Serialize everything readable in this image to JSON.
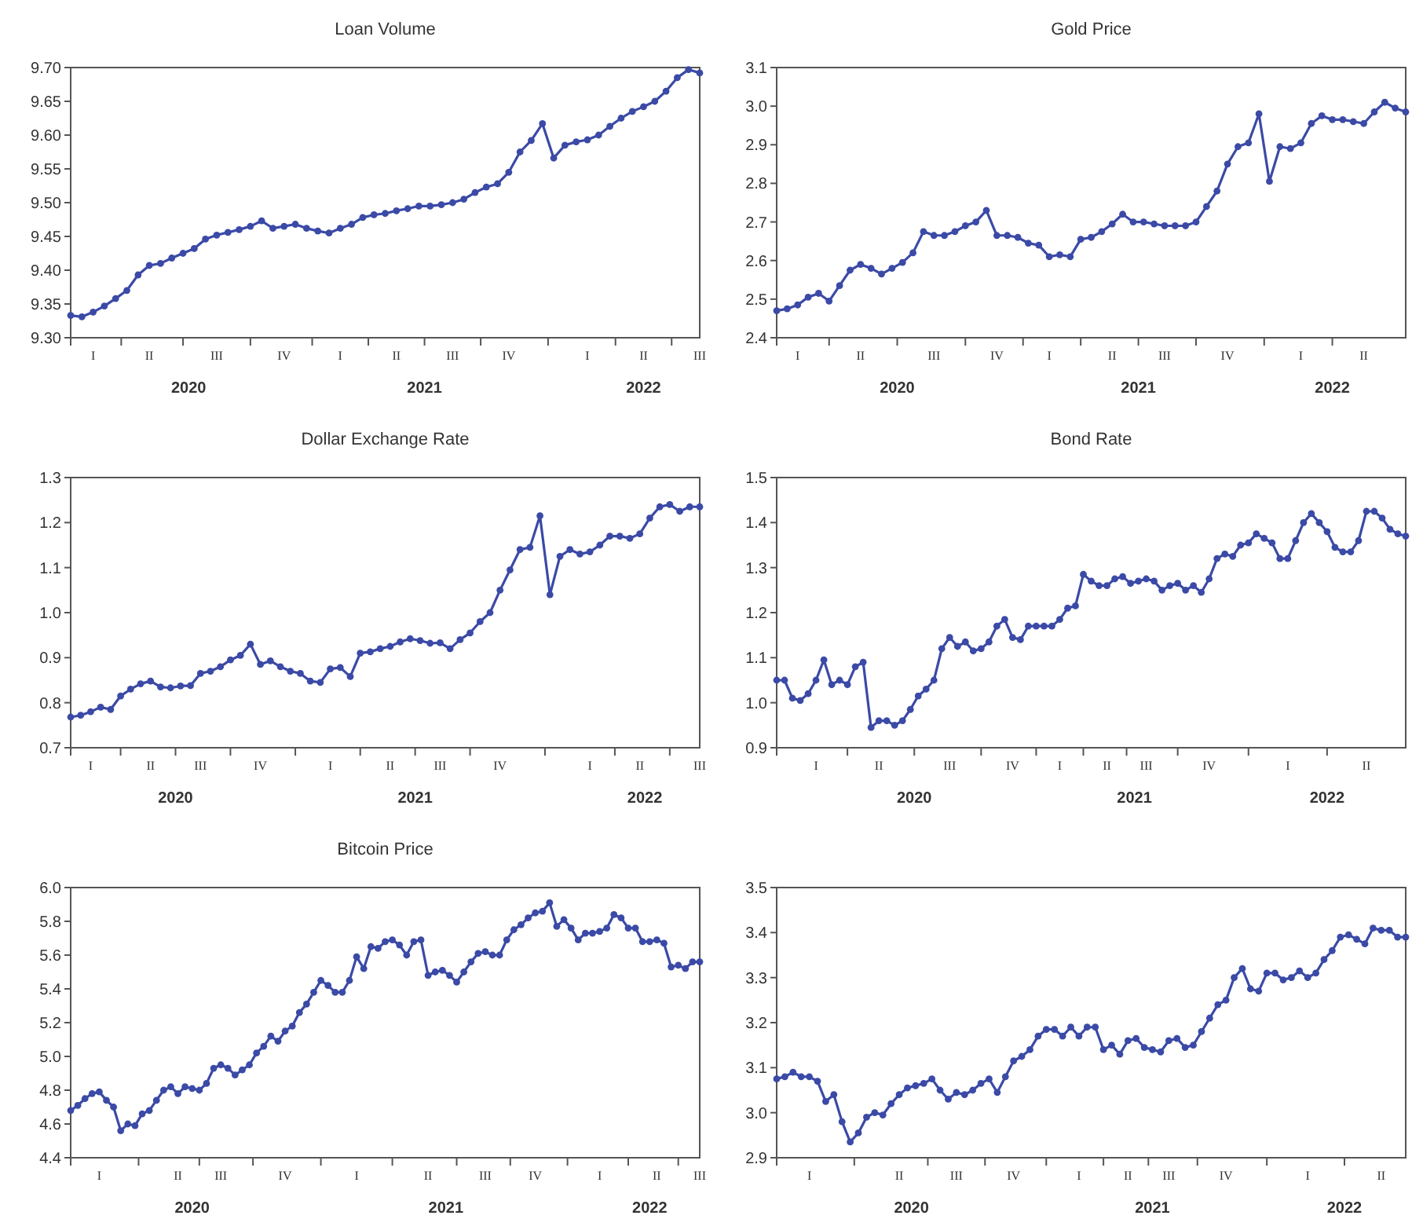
{
  "chart_data": [
    {
      "type": "line",
      "title": "Loan Volume",
      "marker": "circle",
      "line_style": "solid",
      "grid": false,
      "ylim": [
        9.3,
        9.7
      ],
      "yticks": [
        {
          "value": 9.3,
          "label": "9.30"
        },
        9.35,
        {
          "value": 9.4,
          "label": "9.40"
        },
        9.45,
        {
          "value": 9.5,
          "label": "9.50"
        },
        9.55,
        {
          "value": 9.6,
          "label": "9.60"
        },
        9.65,
        {
          "value": 9.7,
          "label": "9.70"
        }
      ],
      "categories": [
        null,
        null,
        "I",
        null,
        null,
        null,
        null,
        "II",
        null,
        null,
        null,
        null,
        null,
        "III",
        null,
        null,
        null,
        null,
        null,
        "IV",
        null,
        null,
        null,
        null,
        "I",
        null,
        null,
        null,
        null,
        "II",
        null,
        null,
        null,
        null,
        "III",
        null,
        null,
        null,
        null,
        "IV",
        null,
        null,
        null,
        null,
        null,
        null,
        "I",
        null,
        null,
        null,
        null,
        "II",
        null,
        null,
        null,
        null,
        "III"
      ],
      "annotations": [
        "2020",
        "2021",
        "2022"
      ],
      "series": [
        {
          "color": "#3b4aa6",
          "values": [
            9.333,
            9.331,
            9.338,
            9.347,
            9.358,
            9.37,
            9.393,
            9.407,
            9.41,
            9.418,
            9.425,
            9.432,
            9.446,
            9.452,
            9.456,
            9.46,
            9.465,
            9.473,
            9.462,
            9.465,
            9.468,
            9.462,
            9.458,
            9.455,
            9.462,
            9.468,
            9.478,
            9.482,
            9.484,
            9.488,
            9.491,
            9.495,
            9.495,
            9.497,
            9.5,
            9.505,
            9.515,
            9.523,
            9.528,
            9.545,
            9.575,
            9.592,
            9.617,
            9.566,
            9.585,
            9.59,
            9.593,
            9.6,
            9.613,
            9.625,
            9.635,
            9.642,
            9.65,
            9.665,
            9.685,
            9.697,
            9.692
          ]
        }
      ]
    },
    {
      "type": "line",
      "title": "Gold Price",
      "marker": "circle",
      "line_style": "solid",
      "grid": false,
      "ylim": [
        2.4,
        3.1
      ],
      "yticks": [
        2.4,
        2.5,
        2.6,
        2.7,
        2.8,
        2.9,
        {
          "value": 3,
          "label": "3.0"
        },
        3.1
      ],
      "categories": [
        null,
        null,
        "I",
        null,
        null,
        null,
        null,
        null,
        "II",
        null,
        null,
        null,
        null,
        null,
        null,
        "III",
        null,
        null,
        null,
        null,
        null,
        "IV",
        null,
        null,
        null,
        null,
        "I",
        null,
        null,
        null,
        null,
        null,
        "II",
        null,
        null,
        null,
        null,
        "III",
        null,
        null,
        null,
        null,
        null,
        "IV",
        null,
        null,
        null,
        null,
        null,
        null,
        "I",
        null,
        null,
        null,
        null,
        null,
        "II",
        null,
        null,
        null,
        null
      ],
      "annotations": [
        "2020",
        "2021",
        "2022"
      ],
      "series": [
        {
          "color": "#3b4aa6",
          "values": [
            2.47,
            2.475,
            2.485,
            2.505,
            2.515,
            2.495,
            2.535,
            2.575,
            2.59,
            2.58,
            2.565,
            2.58,
            2.595,
            2.62,
            2.675,
            2.665,
            2.665,
            2.675,
            2.69,
            2.7,
            2.73,
            2.665,
            2.665,
            2.66,
            2.645,
            2.64,
            2.61,
            2.615,
            2.61,
            2.655,
            2.66,
            2.675,
            2.695,
            2.72,
            2.7,
            2.7,
            2.695,
            2.69,
            2.69,
            2.69,
            2.7,
            2.74,
            2.78,
            2.85,
            2.895,
            2.905,
            2.98,
            2.805,
            2.895,
            2.89,
            2.905,
            2.955,
            2.975,
            2.965,
            2.965,
            2.96,
            2.955,
            2.985,
            3.01,
            2.995,
            2.985
          ]
        }
      ]
    },
    {
      "type": "line",
      "title": "Dollar Exchange Rate",
      "marker": "circle",
      "line_style": "solid",
      "grid": false,
      "ylim": [
        0.7,
        1.3
      ],
      "yticks": [
        0.7,
        0.8,
        0.9,
        {
          "value": 1,
          "label": "1.0"
        },
        1.1,
        1.2,
        1.3
      ],
      "categories": [
        null,
        null,
        "I",
        null,
        null,
        null,
        null,
        null,
        "II",
        null,
        null,
        null,
        null,
        "III",
        null,
        null,
        null,
        null,
        null,
        "IV",
        null,
        null,
        null,
        null,
        null,
        null,
        "I",
        null,
        null,
        null,
        null,
        null,
        "II",
        null,
        null,
        null,
        null,
        "III",
        null,
        null,
        null,
        null,
        null,
        "IV",
        null,
        null,
        null,
        null,
        null,
        null,
        null,
        null,
        "I",
        null,
        null,
        null,
        null,
        "II",
        null,
        null,
        null,
        null,
        null,
        "III"
      ],
      "annotations": [
        "2020",
        "2021",
        "2022"
      ],
      "series": [
        {
          "color": "#3b4aa6",
          "values": [
            0.768,
            0.772,
            0.78,
            0.79,
            0.785,
            0.815,
            0.83,
            0.842,
            0.848,
            0.835,
            0.833,
            0.837,
            0.838,
            0.865,
            0.87,
            0.88,
            0.895,
            0.905,
            0.93,
            0.885,
            0.893,
            0.88,
            0.87,
            0.865,
            0.848,
            0.845,
            0.875,
            0.878,
            0.858,
            0.91,
            0.913,
            0.92,
            0.925,
            0.935,
            0.942,
            0.938,
            0.932,
            0.933,
            0.92,
            0.94,
            0.955,
            0.98,
            1.0,
            1.05,
            1.095,
            1.14,
            1.145,
            1.215,
            1.04,
            1.125,
            1.14,
            1.13,
            1.135,
            1.15,
            1.17,
            1.17,
            1.165,
            1.175,
            1.21,
            1.235,
            1.24,
            1.225,
            1.235,
            1.235
          ]
        }
      ]
    },
    {
      "type": "line",
      "title": "Bond Rate",
      "marker": "circle",
      "line_style": "solid",
      "grid": false,
      "ylim": [
        0.9,
        1.5
      ],
      "yticks": [
        0.9,
        {
          "value": 1,
          "label": "1.0"
        },
        1.1,
        1.2,
        1.3,
        1.4,
        1.5
      ],
      "categories": [
        null,
        null,
        null,
        null,
        null,
        "I",
        null,
        null,
        null,
        null,
        null,
        null,
        null,
        "II",
        null,
        null,
        null,
        null,
        null,
        null,
        null,
        null,
        "III",
        null,
        null,
        null,
        null,
        null,
        null,
        null,
        "IV",
        null,
        null,
        null,
        null,
        null,
        "I",
        null,
        null,
        null,
        null,
        null,
        "II",
        null,
        null,
        null,
        null,
        "III",
        null,
        null,
        null,
        null,
        null,
        null,
        null,
        "IV",
        null,
        null,
        null,
        null,
        null,
        null,
        null,
        null,
        null,
        "I",
        null,
        null,
        null,
        null,
        null,
        null,
        null,
        null,
        null,
        "II",
        null,
        null,
        null,
        null,
        null
      ],
      "annotations": [
        "2020",
        "2021",
        "2022"
      ],
      "series": [
        {
          "color": "#3b4aa6",
          "values": [
            1.05,
            1.05,
            1.01,
            1.005,
            1.02,
            1.05,
            1.095,
            1.04,
            1.05,
            1.04,
            1.08,
            1.09,
            0.945,
            0.96,
            0.96,
            0.95,
            0.96,
            0.985,
            1.015,
            1.03,
            1.05,
            1.12,
            1.145,
            1.125,
            1.135,
            1.115,
            1.12,
            1.135,
            1.17,
            1.185,
            1.145,
            1.14,
            1.17,
            1.17,
            1.17,
            1.17,
            1.185,
            1.21,
            1.215,
            1.285,
            1.27,
            1.26,
            1.26,
            1.275,
            1.28,
            1.265,
            1.27,
            1.275,
            1.27,
            1.25,
            1.26,
            1.265,
            1.25,
            1.26,
            1.245,
            1.275,
            1.32,
            1.33,
            1.325,
            1.35,
            1.355,
            1.375,
            1.365,
            1.355,
            1.32,
            1.32,
            1.36,
            1.4,
            1.42,
            1.4,
            1.38,
            1.345,
            1.335,
            1.335,
            1.36,
            1.425,
            1.425,
            1.41,
            1.385,
            1.375,
            1.37
          ]
        }
      ]
    },
    {
      "type": "line",
      "title": "Bitcoin Price",
      "marker": "circle",
      "line_style": "solid",
      "grid": false,
      "ylim": [
        4.4,
        6.0
      ],
      "yticks": [
        4.4,
        4.6,
        4.8,
        {
          "value": 5,
          "label": "5.0"
        },
        5.2,
        5.4,
        5.6,
        5.8,
        {
          "value": 6,
          "label": "6.0"
        }
      ],
      "categories": [
        null,
        null,
        null,
        null,
        "I",
        null,
        null,
        null,
        null,
        null,
        null,
        null,
        null,
        null,
        null,
        "II",
        null,
        null,
        null,
        null,
        null,
        "III",
        null,
        null,
        null,
        null,
        null,
        null,
        null,
        null,
        "IV",
        null,
        null,
        null,
        null,
        null,
        null,
        null,
        null,
        null,
        "I",
        null,
        null,
        null,
        null,
        null,
        null,
        null,
        null,
        null,
        "II",
        null,
        null,
        null,
        null,
        null,
        null,
        null,
        "III",
        null,
        null,
        null,
        null,
        null,
        null,
        "IV",
        null,
        null,
        null,
        null,
        null,
        null,
        null,
        null,
        "I",
        null,
        null,
        null,
        null,
        null,
        null,
        null,
        "II",
        null,
        null,
        null,
        null,
        null,
        "III"
      ],
      "annotations": [
        "2020",
        "2021",
        "2022"
      ],
      "series": [
        {
          "color": "#3b4aa6",
          "values": [
            4.68,
            4.71,
            4.75,
            4.78,
            4.79,
            4.74,
            4.7,
            4.56,
            4.6,
            4.59,
            4.66,
            4.68,
            4.74,
            4.8,
            4.82,
            4.78,
            4.82,
            4.81,
            4.8,
            4.84,
            4.93,
            4.95,
            4.93,
            4.89,
            4.92,
            4.95,
            5.02,
            5.06,
            5.12,
            5.09,
            5.15,
            5.18,
            5.26,
            5.31,
            5.38,
            5.45,
            5.42,
            5.38,
            5.38,
            5.45,
            5.59,
            5.52,
            5.65,
            5.64,
            5.68,
            5.69,
            5.66,
            5.6,
            5.68,
            5.69,
            5.48,
            5.5,
            5.51,
            5.48,
            5.44,
            5.5,
            5.56,
            5.61,
            5.62,
            5.6,
            5.6,
            5.69,
            5.75,
            5.78,
            5.82,
            5.85,
            5.86,
            5.91,
            5.77,
            5.81,
            5.76,
            5.69,
            5.73,
            5.73,
            5.74,
            5.76,
            5.84,
            5.82,
            5.76,
            5.76,
            5.68,
            5.68,
            5.69,
            5.67,
            5.53,
            5.54,
            5.52,
            5.56,
            5.56
          ]
        }
      ]
    },
    {
      "type": "line",
      "marker": "circle",
      "line_style": "solid",
      "grid": false,
      "ylim": [
        2.9,
        3.5
      ],
      "yticks": [
        2.9,
        {
          "value": 3,
          "label": "3.0"
        },
        3.1,
        3.2,
        3.3,
        3.4,
        3.5
      ],
      "categories": [
        null,
        null,
        null,
        null,
        "I",
        null,
        null,
        null,
        null,
        null,
        null,
        null,
        null,
        null,
        null,
        "II",
        null,
        null,
        null,
        null,
        null,
        null,
        "III",
        null,
        null,
        null,
        null,
        null,
        null,
        "IV",
        null,
        null,
        null,
        null,
        null,
        null,
        null,
        "I",
        null,
        null,
        null,
        null,
        null,
        "II",
        null,
        null,
        null,
        null,
        "III",
        null,
        null,
        null,
        null,
        null,
        null,
        "IV",
        null,
        null,
        null,
        null,
        null,
        null,
        null,
        null,
        null,
        "I",
        null,
        null,
        null,
        null,
        null,
        null,
        null,
        null,
        "II",
        null,
        null,
        null
      ],
      "annotations": [
        "2020",
        "2021",
        "2022"
      ],
      "series": [
        {
          "color": "#3b4aa6",
          "values": [
            3.075,
            3.08,
            3.09,
            3.08,
            3.08,
            3.07,
            3.025,
            3.04,
            2.98,
            2.935,
            2.955,
            2.99,
            3.0,
            2.995,
            3.02,
            3.04,
            3.055,
            3.06,
            3.065,
            3.075,
            3.05,
            3.03,
            3.045,
            3.04,
            3.05,
            3.065,
            3.075,
            3.045,
            3.08,
            3.115,
            3.125,
            3.14,
            3.17,
            3.185,
            3.185,
            3.17,
            3.19,
            3.17,
            3.19,
            3.19,
            3.14,
            3.15,
            3.13,
            3.16,
            3.165,
            3.145,
            3.14,
            3.135,
            3.16,
            3.165,
            3.145,
            3.15,
            3.18,
            3.21,
            3.24,
            3.25,
            3.3,
            3.32,
            3.275,
            3.27,
            3.31,
            3.31,
            3.295,
            3.3,
            3.315,
            3.3,
            3.31,
            3.34,
            3.36,
            3.39,
            3.395,
            3.385,
            3.375,
            3.41,
            3.405,
            3.405,
            3.39,
            3.39
          ]
        }
      ]
    }
  ]
}
